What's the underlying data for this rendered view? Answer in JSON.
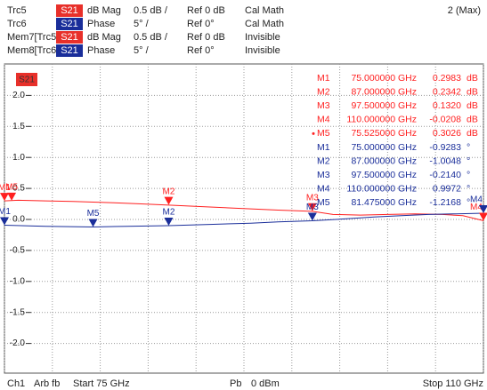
{
  "header": {
    "rows": [
      [
        "Trc5",
        "S21",
        "dB Mag",
        "0.5 dB /",
        "Ref 0 dB",
        "Cal Math"
      ],
      [
        "Trc6",
        "S21",
        "Phase",
        "5° /",
        "Ref 0°",
        "Cal Math"
      ],
      [
        "Mem7[Trc5]",
        "S21",
        "dB Mag",
        "0.5 dB /",
        "Ref 0 dB",
        "Invisible"
      ],
      [
        "Mem8[Trc6]",
        "S21",
        "Phase",
        "5° /",
        "Ref 0°",
        "Invisible"
      ]
    ],
    "right": "2 (Max)"
  },
  "chart_data": {
    "type": "line",
    "badge": "S21",
    "xlim": [
      75,
      110
    ],
    "xticks": [
      75,
      78.5,
      82,
      85.5,
      89,
      92.5,
      96,
      99.5,
      103,
      106.5,
      110
    ],
    "ylim": [
      -2.5,
      2.5
    ],
    "y2lim": [
      -25,
      25
    ],
    "yticks": [
      {
        "value": 2,
        "label": "2.0"
      },
      {
        "value": 1.5,
        "label": "1.5"
      },
      {
        "value": 1,
        "label": "1.0"
      },
      {
        "value": 0.5,
        "label": "0.5"
      },
      {
        "value": 0,
        "label": "0.0"
      },
      {
        "value": -0.5,
        "label": "-0.5"
      },
      {
        "value": -1,
        "label": "-1.0"
      },
      {
        "value": -1.5,
        "label": "-1.5"
      },
      {
        "value": -2,
        "label": "-2.0"
      }
    ],
    "grid": true,
    "series": [
      {
        "name": "Trc5",
        "color": "#ff2020",
        "x": [
          75,
          76,
          78,
          80,
          83,
          85,
          87,
          90,
          93,
          95,
          97.5,
          99,
          101,
          103,
          105,
          107,
          108.5,
          110
        ],
        "values": [
          0.3,
          0.31,
          0.3,
          0.29,
          0.27,
          0.25,
          0.23,
          0.2,
          0.17,
          0.15,
          0.13,
          0.08,
          0.07,
          0.08,
          0.09,
          0.08,
          0.06,
          -0.02
        ],
        "markers": [
          {
            "label": "M1",
            "x": 75,
            "x_label": "75.000000 GHz",
            "value": 0.2983,
            "value_label": "0.2983",
            "unit": "dB"
          },
          {
            "label": "M2",
            "x": 87,
            "x_label": "87.000000 GHz",
            "value": 0.2342,
            "value_label": "0.2342",
            "unit": "dB"
          },
          {
            "label": "M3",
            "x": 97.5,
            "x_label": "97.500000 GHz",
            "value": 0.132,
            "value_label": "0.1320",
            "unit": "dB"
          },
          {
            "label": "M4",
            "x": 110,
            "x_label": "110.000000 GHz",
            "value": -0.0208,
            "value_label": "-0.0208",
            "unit": "dB"
          },
          {
            "label": "M5",
            "x": 75.525,
            "x_label": "75.525000 GHz",
            "value": 0.3026,
            "value_label": "0.3026",
            "unit": "dB"
          }
        ]
      },
      {
        "name": "Trc6",
        "color": "#1a2e9a",
        "axis": "y2",
        "x": [
          75,
          78,
          81.5,
          84,
          87,
          90,
          93,
          95,
          97.5,
          100,
          102,
          104,
          106,
          108,
          110
        ],
        "values": [
          -0.93,
          -1.1,
          -1.22,
          -1.1,
          -1.0,
          -0.8,
          -0.6,
          -0.4,
          -0.21,
          0.1,
          0.4,
          0.6,
          0.8,
          0.9,
          1.0
        ],
        "markers": [
          {
            "label": "M1",
            "x": 75,
            "x_label": "75.000000 GHz",
            "value": -0.9283,
            "value_label": "-0.9283",
            "unit": "°"
          },
          {
            "label": "M2",
            "x": 87,
            "x_label": "87.000000 GHz",
            "value": -1.0048,
            "value_label": "-1.0048",
            "unit": "°"
          },
          {
            "label": "M3",
            "x": 97.5,
            "x_label": "97.500000 GHz",
            "value": -0.214,
            "value_label": "-0.2140",
            "unit": "°"
          },
          {
            "label": "M4",
            "x": 110,
            "x_label": "110.000000 GHz",
            "value": 0.9972,
            "value_label": "0.9972",
            "unit": "°"
          },
          {
            "label": "M5",
            "x": 81.475,
            "x_label": "81.475000 GHz",
            "value": -1.2168,
            "value_label": "-1.2168",
            "unit": "°"
          }
        ]
      }
    ]
  },
  "footer": {
    "left": [
      "Ch1",
      "Arb fb",
      "Start 75 GHz"
    ],
    "center": [
      "Pb",
      "0 dBm"
    ],
    "right": "Stop 110 GHz"
  }
}
